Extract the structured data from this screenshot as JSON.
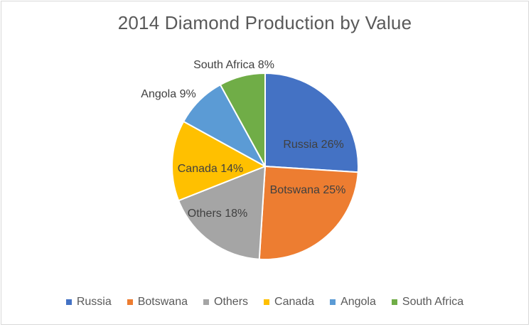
{
  "chart_data": {
    "type": "pie",
    "title": "2014 Diamond Production by Value",
    "legend_position": "bottom",
    "slices": [
      {
        "name": "Russia",
        "value": 26,
        "label": "Russia 26%",
        "color": "#4472C4"
      },
      {
        "name": "Botswana",
        "value": 25,
        "label": "Botswana 25%",
        "color": "#ED7D31"
      },
      {
        "name": "Others",
        "value": 18,
        "label": "Others 18%",
        "color": "#A5A5A5"
      },
      {
        "name": "Canada",
        "value": 14,
        "label": "Canada 14%",
        "color": "#FFC000"
      },
      {
        "name": "Angola",
        "value": 9,
        "label": "Angola 9%",
        "color": "#5B9BD5"
      },
      {
        "name": "South Africa",
        "value": 8,
        "label": "South Africa 8%",
        "color": "#70AD47"
      }
    ]
  }
}
